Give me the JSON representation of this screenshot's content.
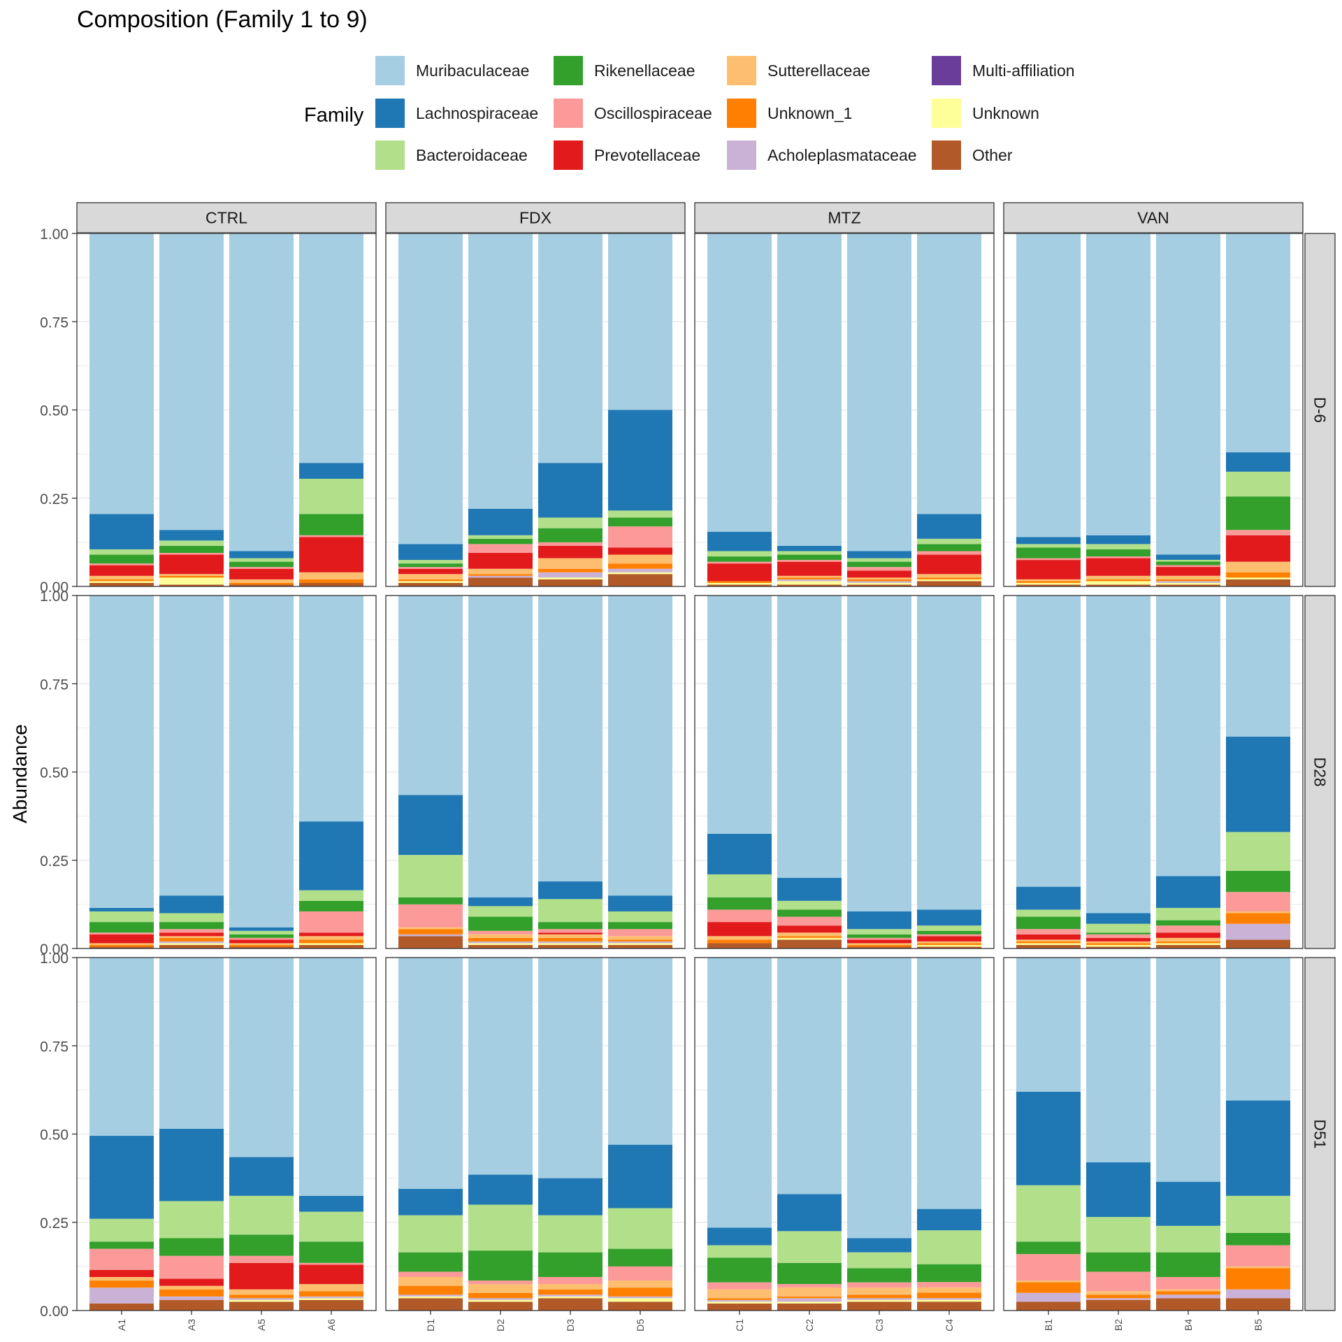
{
  "chart_data": {
    "type": "bar",
    "stacked": true,
    "title": "Composition (Family 1 to 9)",
    "xlabel": "",
    "ylabel": "Abundance",
    "ylim": [
      0,
      1
    ],
    "y_ticks": [
      "0.00",
      "0.25",
      "0.50",
      "0.75",
      "1.00"
    ],
    "grid": true,
    "legend": {
      "title": "Family",
      "position": "top",
      "entries": [
        "Muribaculaceae",
        "Lachnospiraceae",
        "Bacteroidaceae",
        "Rikenellaceae",
        "Oscillospiraceae",
        "Prevotellaceae",
        "Sutterellaceae",
        "Unknown_1",
        "Acholeplasmataceae",
        "Multi-affiliation",
        "Unknown",
        "Other"
      ]
    },
    "families": [
      "Other",
      "Unknown",
      "Multi-affiliation",
      "Acholeplasmataceae",
      "Unknown_1",
      "Sutterellaceae",
      "Prevotellaceae",
      "Oscillospiraceae",
      "Rikenellaceae",
      "Bacteroidaceae",
      "Lachnospiraceae",
      "Muribaculaceae"
    ],
    "colors": {
      "Muribaculaceae": "#A6CEE3",
      "Lachnospiraceae": "#1F78B4",
      "Bacteroidaceae": "#B2DF8A",
      "Rikenellaceae": "#33A02C",
      "Oscillospiraceae": "#FB9A99",
      "Prevotellaceae": "#E31A1C",
      "Sutterellaceae": "#FDBF6F",
      "Unknown_1": "#FF7F00",
      "Acholeplasmataceae": "#CAB2D6",
      "Multi-affiliation": "#6A3D9A",
      "Unknown": "#FFFF99",
      "Other": "#B15928"
    },
    "column_facets": [
      "CTRL",
      "FDX",
      "MTZ",
      "VAN"
    ],
    "row_facets": [
      "D-6",
      "D28",
      "D51"
    ],
    "samples": {
      "CTRL": [
        "A1",
        "A3",
        "A5",
        "A6"
      ],
      "FDX": [
        "D1",
        "D2",
        "D3",
        "D5"
      ],
      "MTZ": [
        "C1",
        "C2",
        "C3",
        "C4"
      ],
      "VAN": [
        "B1",
        "B2",
        "B4",
        "B5"
      ]
    },
    "series_order_note": "stack values listed bottom-to-top in order of 'families'",
    "panels": {
      "D-6": {
        "CTRL": [
          [
            0.01,
            0.005,
            0,
            0,
            0.005,
            0.01,
            0.03,
            0.005,
            0.025,
            0.015,
            0.1,
            0.795
          ],
          [
            0.005,
            0.02,
            0,
            0,
            0.005,
            0.005,
            0.055,
            0.005,
            0.02,
            0.015,
            0.03,
            0.84
          ],
          [
            0.005,
            0,
            0,
            0,
            0.005,
            0.01,
            0.03,
            0.005,
            0.015,
            0.01,
            0.02,
            0.9
          ],
          [
            0.01,
            0,
            0,
            0,
            0.01,
            0.02,
            0.1,
            0.005,
            0.06,
            0.1,
            0.045,
            0.65
          ]
        ],
        "FDX": [
          [
            0.01,
            0.005,
            0,
            0,
            0.005,
            0.015,
            0.015,
            0.005,
            0.01,
            0.01,
            0.045,
            0.88
          ],
          [
            0.025,
            0,
            0,
            0.005,
            0.005,
            0.015,
            0.045,
            0.025,
            0.015,
            0.01,
            0.075,
            0.78
          ],
          [
            0.02,
            0.005,
            0,
            0.015,
            0.01,
            0.03,
            0.035,
            0.01,
            0.04,
            0.03,
            0.155,
            0.65
          ],
          [
            0.035,
            0.005,
            0,
            0.01,
            0.015,
            0.025,
            0.02,
            0.06,
            0.025,
            0.02,
            0.285,
            0.5
          ]
        ],
        "MTZ": [
          [
            0.005,
            0.005,
            0,
            0,
            0.005,
            0,
            0.05,
            0.005,
            0.015,
            0.015,
            0.055,
            0.845
          ],
          [
            0.005,
            0.01,
            0,
            0.005,
            0.005,
            0.005,
            0.04,
            0.005,
            0.015,
            0.01,
            0.015,
            0.885
          ],
          [
            0.005,
            0.005,
            0,
            0.005,
            0.005,
            0.005,
            0.02,
            0.01,
            0.015,
            0.01,
            0.02,
            0.9
          ],
          [
            0.015,
            0.005,
            0,
            0,
            0.005,
            0.01,
            0.055,
            0.01,
            0.02,
            0.015,
            0.07,
            0.795
          ]
        ],
        "VAN": [
          [
            0.005,
            0.005,
            0,
            0,
            0.005,
            0.005,
            0.055,
            0.005,
            0.03,
            0.01,
            0.02,
            0.86
          ],
          [
            0.005,
            0.01,
            0,
            0,
            0.005,
            0.01,
            0.05,
            0.005,
            0.02,
            0.015,
            0.025,
            0.855
          ],
          [
            0.005,
            0.005,
            0,
            0.005,
            0.005,
            0.01,
            0.025,
            0.005,
            0.01,
            0.005,
            0.015,
            0.905
          ],
          [
            0.02,
            0.005,
            0,
            0,
            0.015,
            0.03,
            0.075,
            0.015,
            0.095,
            0.07,
            0.055,
            0.62
          ]
        ]
      },
      "D28": {
        "CTRL": [
          [
            0.005,
            0,
            0,
            0,
            0.005,
            0.005,
            0.025,
            0.005,
            0.03,
            0.03,
            0.01,
            0.885
          ],
          [
            0.01,
            0.005,
            0,
            0.005,
            0.01,
            0.005,
            0.01,
            0.01,
            0.02,
            0.025,
            0.05,
            0.85
          ],
          [
            0.005,
            0,
            0,
            0,
            0.005,
            0.005,
            0.01,
            0.005,
            0.01,
            0.01,
            0.01,
            0.94
          ],
          [
            0.01,
            0.005,
            0,
            0,
            0.01,
            0.01,
            0.01,
            0.06,
            0.03,
            0.03,
            0.195,
            0.64
          ]
        ],
        "FDX": [
          [
            0.035,
            0,
            0,
            0.005,
            0.015,
            0.005,
            0,
            0.065,
            0.02,
            0.12,
            0.17,
            0.565
          ],
          [
            0.01,
            0.005,
            0,
            0.005,
            0.01,
            0.01,
            0,
            0.01,
            0.04,
            0.03,
            0.025,
            0.855
          ],
          [
            0.01,
            0.005,
            0,
            0.005,
            0.01,
            0.01,
            0.005,
            0.01,
            0.02,
            0.065,
            0.05,
            0.81
          ],
          [
            0.01,
            0.005,
            0,
            0.005,
            0.005,
            0.01,
            0,
            0.02,
            0.02,
            0.03,
            0.045,
            0.85
          ]
        ],
        "MTZ": [
          [
            0.015,
            0,
            0,
            0,
            0.01,
            0.01,
            0.04,
            0.035,
            0.035,
            0.065,
            0.115,
            0.675
          ],
          [
            0.025,
            0.005,
            0,
            0,
            0.005,
            0.01,
            0.02,
            0.025,
            0.02,
            0.025,
            0.065,
            0.8
          ],
          [
            0.005,
            0,
            0,
            0,
            0.005,
            0.005,
            0.01,
            0.005,
            0.01,
            0.015,
            0.05,
            0.895
          ],
          [
            0.005,
            0.005,
            0,
            0,
            0.005,
            0.005,
            0.015,
            0.005,
            0.01,
            0.015,
            0.045,
            0.89
          ]
        ],
        "VAN": [
          [
            0.01,
            0.005,
            0,
            0,
            0.005,
            0.005,
            0.015,
            0.015,
            0.035,
            0.02,
            0.065,
            0.825
          ],
          [
            0.005,
            0.005,
            0,
            0,
            0.005,
            0.005,
            0.01,
            0.01,
            0.005,
            0.025,
            0.03,
            0.9
          ],
          [
            0.01,
            0.005,
            0,
            0,
            0.005,
            0.01,
            0.015,
            0.02,
            0.015,
            0.035,
            0.09,
            0.795
          ],
          [
            0.025,
            0,
            0,
            0.045,
            0.03,
            0.005,
            0,
            0.055,
            0.06,
            0.11,
            0.27,
            0.4
          ]
        ]
      },
      "D51": {
        "CTRL": [
          [
            0.02,
            0,
            0,
            0.045,
            0.02,
            0.01,
            0.02,
            0.06,
            0.02,
            0.065,
            0.235,
            0.505
          ],
          [
            0.03,
            0,
            0,
            0.01,
            0.02,
            0.01,
            0.02,
            0.065,
            0.05,
            0.105,
            0.205,
            0.485
          ],
          [
            0.025,
            0.005,
            0,
            0.005,
            0.01,
            0.015,
            0.075,
            0.02,
            0.06,
            0.11,
            0.11,
            0.565
          ],
          [
            0.03,
            0.005,
            0,
            0.005,
            0.015,
            0.02,
            0.055,
            0.005,
            0.06,
            0.085,
            0.045,
            0.675
          ]
        ],
        "FDX": [
          [
            0.035,
            0.005,
            0,
            0.005,
            0.025,
            0.025,
            0,
            0.015,
            0.055,
            0.105,
            0.075,
            0.655
          ],
          [
            0.025,
            0.005,
            0,
            0.005,
            0.015,
            0.025,
            0,
            0.01,
            0.085,
            0.13,
            0.085,
            0.615
          ],
          [
            0.035,
            0.005,
            0,
            0.005,
            0.015,
            0.015,
            0,
            0.02,
            0.07,
            0.105,
            0.105,
            0.625
          ],
          [
            0.025,
            0.01,
            0,
            0.005,
            0.025,
            0.02,
            0,
            0.04,
            0.05,
            0.115,
            0.18,
            0.53
          ]
        ],
        "MTZ": [
          [
            0.02,
            0.005,
            0,
            0.005,
            0.005,
            0.025,
            0,
            0.02,
            0.07,
            0.035,
            0.05,
            0.765
          ],
          [
            0.02,
            0.005,
            0,
            0.01,
            0.005,
            0.025,
            0,
            0.01,
            0.06,
            0.09,
            0.105,
            0.67
          ],
          [
            0.025,
            0.005,
            0,
            0.005,
            0.01,
            0.02,
            0,
            0.015,
            0.04,
            0.045,
            0.04,
            0.795
          ],
          [
            0.025,
            0.005,
            0,
            0.005,
            0.015,
            0.015,
            0,
            0.015,
            0.05,
            0.095,
            0.06,
            0.705
          ]
        ],
        "VAN": [
          [
            0.025,
            0,
            0,
            0.025,
            0.03,
            0.005,
            0,
            0.075,
            0.035,
            0.16,
            0.265,
            0.38
          ],
          [
            0.03,
            0,
            0,
            0.005,
            0.01,
            0.01,
            0,
            0.055,
            0.055,
            0.1,
            0.155,
            0.58
          ],
          [
            0.035,
            0,
            0,
            0.01,
            0.01,
            0.005,
            0,
            0.035,
            0.07,
            0.075,
            0.125,
            0.635
          ],
          [
            0.035,
            0,
            0,
            0.025,
            0.06,
            0.005,
            0,
            0.06,
            0.035,
            0.105,
            0.27,
            0.405
          ]
        ]
      }
    }
  }
}
